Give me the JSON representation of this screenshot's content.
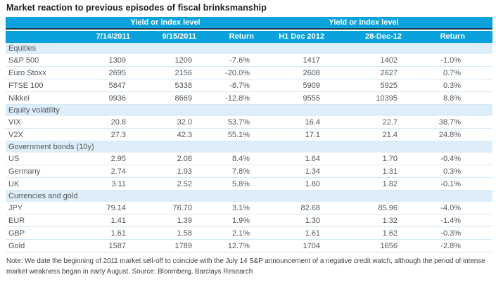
{
  "title": "Market reaction to previous episodes of fiscal brinksmanship",
  "chart_data": {
    "type": "table",
    "title": "Market reaction to previous episodes of fiscal brinksmanship",
    "group_headers": [
      "Yield or index level",
      "Yield or index level"
    ],
    "columns": [
      "",
      "7/14/2011",
      "9/15/2011",
      "Return",
      "H1 Dec 2012",
      "28-Dec-12",
      "Return"
    ],
    "sections": [
      {
        "label": "Equities",
        "rows": [
          {
            "label": "S&P 500",
            "values": [
              "1309",
              "1209",
              "-7.6%",
              "1417",
              "1402",
              "-1.0%"
            ]
          },
          {
            "label": "Euro Stoxx",
            "values": [
              "2695",
              "2156",
              "-20.0%",
              "2608",
              "2627",
              "0.7%"
            ]
          },
          {
            "label": "FTSE 100",
            "values": [
              "5847",
              "5338",
              "-8.7%",
              "5909",
              "5925",
              "0.3%"
            ]
          },
          {
            "label": "Nikkei",
            "values": [
              "9936",
              "8669",
              "-12.8%",
              "9555",
              "10395",
              "8.8%"
            ]
          }
        ]
      },
      {
        "label": "Equity volatility",
        "rows": [
          {
            "label": "VIX",
            "values": [
              "20.8",
              "32.0",
              "53.7%",
              "16.4",
              "22.7",
              "38.7%"
            ]
          },
          {
            "label": "V2X",
            "values": [
              "27.3",
              "42.3",
              "55.1%",
              "17.1",
              "21.4",
              "24.8%"
            ]
          }
        ]
      },
      {
        "label": "Government bonds (10y)",
        "rows": [
          {
            "label": "US",
            "values": [
              "2.95",
              "2.08",
              "8.4%",
              "1.64",
              "1.70",
              "-0.4%"
            ]
          },
          {
            "label": "Germany",
            "values": [
              "2.74",
              "1.93",
              "7.8%",
              "1.34",
              "1.31",
              "0.3%"
            ]
          },
          {
            "label": "UK",
            "values": [
              "3.11",
              "2.52",
              "5.8%",
              "1.80",
              "1.82",
              "-0.1%"
            ]
          }
        ]
      },
      {
        "label": "Currencies and gold",
        "rows": [
          {
            "label": "JPY",
            "values": [
              "79.14",
              "76.70",
              "3.1%",
              "82.68",
              "85.96",
              "-4.0%"
            ]
          },
          {
            "label": "EUR",
            "values": [
              "1.41",
              "1.39",
              "1.9%",
              "1.30",
              "1.32",
              "-1.4%"
            ]
          },
          {
            "label": "GBP",
            "values": [
              "1.61",
              "1.58",
              "2.1%",
              "1.61",
              "1.62",
              "-0.3%"
            ]
          },
          {
            "label": "Gold",
            "values": [
              "1587",
              "1789",
              "12.7%",
              "1704",
              "1656",
              "-2.8%"
            ]
          }
        ]
      }
    ]
  },
  "note": "Note: We date the beginning of 2011 market sell-off to coincide with the July 14 S&P announcement of a negative credit watch, although the period of intense market weakness began in early August. Source: Bloomberg, Barclays Research",
  "colors": {
    "header_bg": "#0aa2dc",
    "header_separator": "#0c3c55",
    "section_bg": "#ddeef9",
    "row_line": "#d2e9f6",
    "body_text": "#54565a"
  }
}
